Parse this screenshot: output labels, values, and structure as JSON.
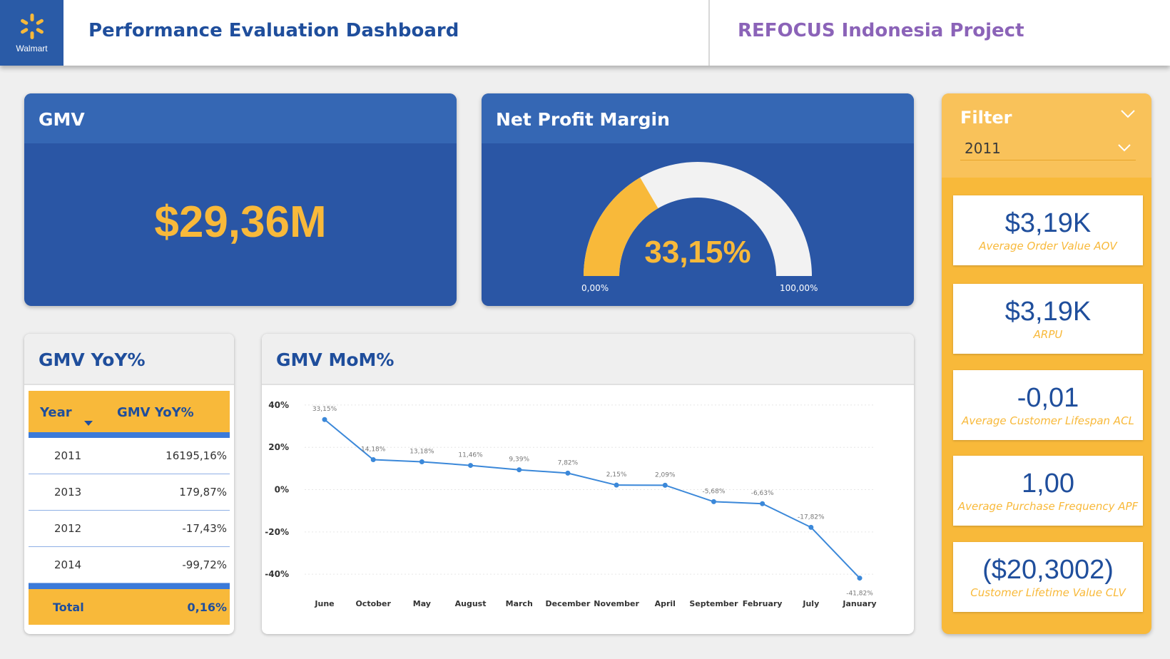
{
  "header": {
    "logo_text": "Walmart",
    "title": "Performance Evaluation Dashboard",
    "project": "REFOCUS Indonesia Project"
  },
  "gmv": {
    "title": "GMV",
    "value": "$29,36M"
  },
  "npm": {
    "title": "Net Profit Margin",
    "value": "33,15%",
    "fraction": 0.3315,
    "min_label": "0,00%",
    "max_label": "100,00%"
  },
  "filter": {
    "title": "Filter",
    "selected": "2011",
    "kpis": [
      {
        "value": "$3,19K",
        "label": "Average Order Value AOV"
      },
      {
        "value": "$3,19K",
        "label": "ARPU"
      },
      {
        "value": "-0,01",
        "label": "Average Customer Lifespan ACL"
      },
      {
        "value": "1,00",
        "label": "Average Purchase Frequency APF"
      },
      {
        "value": "($20,3002)",
        "label": "Customer Lifetime Value CLV"
      }
    ]
  },
  "yoy": {
    "title": "GMV YoY%",
    "col_year": "Year",
    "col_value": "GMV YoY%",
    "rows": [
      {
        "year": "2011",
        "value": "16195,16%"
      },
      {
        "year": "2013",
        "value": "179,87%"
      },
      {
        "year": "2012",
        "value": "-17,43%"
      },
      {
        "year": "2014",
        "value": "-99,72%"
      }
    ],
    "total_label": "Total",
    "total_value": "0,16%"
  },
  "mom": {
    "title": "GMV MoM%"
  },
  "colors": {
    "primary_blue": "#2a56a5",
    "header_blue": "#3567b4",
    "accent_yellow": "#f8b93a",
    "title_blue": "#1f4e9c",
    "project_purple": "#8b63b8",
    "line_blue": "#3b88d9"
  },
  "chart_data": {
    "type": "line",
    "title": "GMV MoM%",
    "categories": [
      "June",
      "October",
      "May",
      "August",
      "March",
      "December",
      "November",
      "April",
      "September",
      "February",
      "July",
      "January"
    ],
    "series": [
      {
        "values": [
          33.15,
          14.18,
          13.18,
          11.46,
          9.39,
          7.82,
          2.15,
          2.09,
          -5.68,
          -6.63,
          -17.82,
          -41.82
        ],
        "labels": [
          "33,15%",
          "14,18%",
          "13,18%",
          "11,46%",
          "9,39%",
          "7,82%",
          "2,15%",
          "2,09%",
          "-5,68%",
          "-6,63%",
          "-17,82%",
          "-41,82%"
        ]
      }
    ],
    "y_ticks": [
      40,
      20,
      0,
      -20,
      -40
    ],
    "y_tick_labels": [
      "40%",
      "20%",
      "0%",
      "-20%",
      "-40%"
    ],
    "ylim": [
      -45,
      42
    ],
    "grid": true
  }
}
